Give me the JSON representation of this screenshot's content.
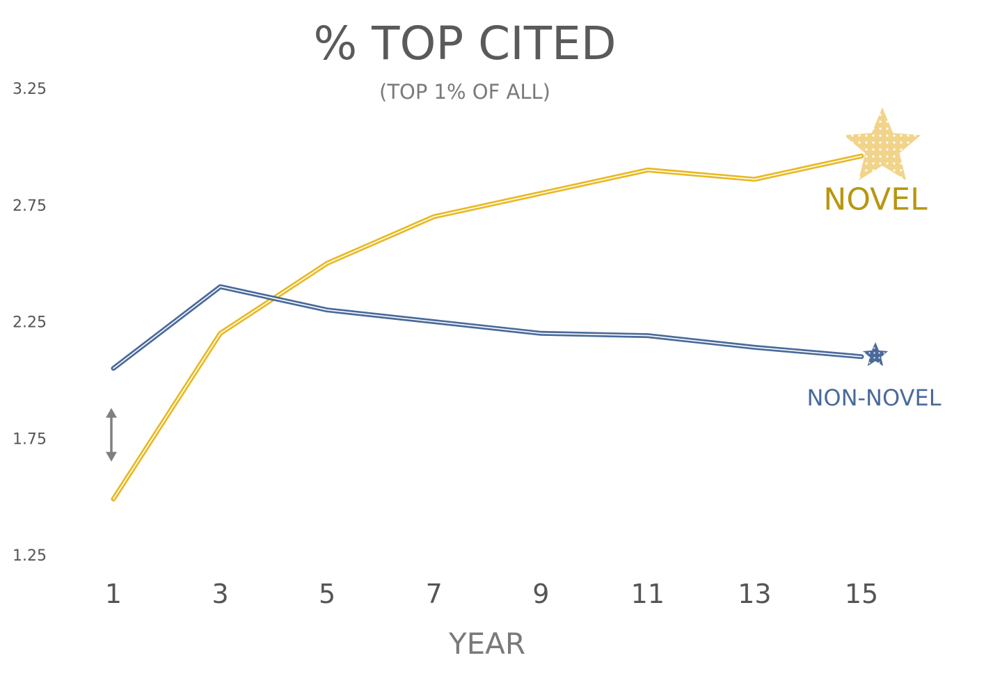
{
  "chart_data": {
    "type": "line",
    "title": "% TOP CITED",
    "subtitle": "(TOP 1% OF ALL)",
    "xlabel": "YEAR",
    "ylabel": "",
    "x": [
      1,
      3,
      5,
      7,
      9,
      11,
      13,
      15
    ],
    "xlim": [
      1,
      15
    ],
    "ylim": [
      1.25,
      3.25
    ],
    "yticks": [
      "3.25",
      "2.75",
      "2.25",
      "1.75",
      "1.25"
    ],
    "xticks": [
      "1",
      "3",
      "5",
      "7",
      "9",
      "11",
      "13",
      "15"
    ],
    "grid": false,
    "series": [
      {
        "name": "NOVEL",
        "color": "#e8b923",
        "label_color": "#b8960f",
        "marker": "star-icon",
        "values": [
          1.49,
          2.2,
          2.5,
          2.7,
          2.8,
          2.9,
          2.86,
          2.96
        ]
      },
      {
        "name": "NON-NOVEL",
        "color": "#4a6a9a",
        "label_color": "#4a6a9a",
        "marker": "star-icon",
        "values": [
          2.05,
          2.4,
          2.3,
          2.25,
          2.2,
          2.19,
          2.14,
          2.1
        ]
      }
    ],
    "annotations": [
      {
        "type": "double-arrow",
        "x": 1,
        "y_from": 1.88,
        "y_to": 1.65,
        "color": "#808080"
      }
    ]
  }
}
